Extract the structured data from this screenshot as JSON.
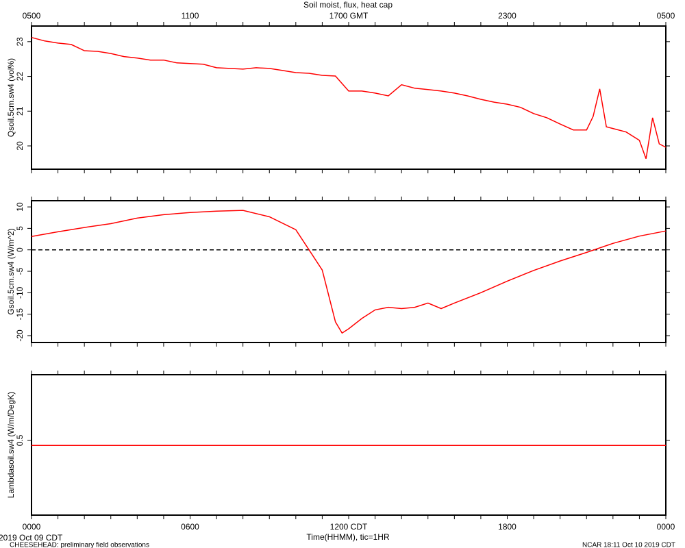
{
  "chart_data": [
    {
      "type": "line",
      "title": "Soil moist, flux, heat cap",
      "ylabel": "Qsoil.5cm.sw4 (vol%)",
      "color": "#ff0000",
      "x": [
        0,
        0.5,
        1,
        1.5,
        2,
        2.5,
        3,
        3.5,
        4,
        4.5,
        5,
        5.5,
        6,
        6.5,
        7,
        7.5,
        8,
        8.5,
        9,
        9.5,
        10,
        10.5,
        11,
        11.5,
        12,
        12.5,
        13,
        13.5,
        14,
        14.5,
        15,
        15.5,
        16,
        16.5,
        17,
        17.5,
        18,
        18.5,
        19,
        19.5,
        20,
        20.5,
        21,
        21.25,
        21.5,
        21.75,
        22,
        22.5,
        23,
        23.25,
        23.5,
        23.75,
        24
      ],
      "values": [
        23.12,
        23.02,
        22.96,
        22.92,
        22.74,
        22.72,
        22.66,
        22.57,
        22.53,
        22.47,
        22.47,
        22.39,
        22.37,
        22.35,
        22.25,
        22.23,
        22.21,
        22.25,
        22.23,
        22.17,
        22.11,
        22.09,
        22.03,
        22.01,
        21.58,
        21.58,
        21.52,
        21.44,
        21.76,
        21.66,
        21.62,
        21.58,
        21.52,
        21.44,
        21.34,
        21.26,
        21.2,
        21.11,
        20.93,
        20.81,
        20.63,
        20.46,
        20.46,
        20.85,
        21.64,
        20.55,
        20.5,
        20.4,
        20.16,
        19.63,
        20.81,
        20.06,
        19.96
      ],
      "xlim": [
        0,
        24
      ],
      "ylim": [
        19.33,
        23.45
      ],
      "yticks": [
        20,
        21,
        22,
        23
      ],
      "x2ticks": [
        {
          "value": 0,
          "label": "0500"
        },
        {
          "value": 6,
          "label": "1100"
        },
        {
          "value": 12,
          "label": "1700 GMT"
        },
        {
          "value": 18,
          "label": "2300"
        },
        {
          "value": 24,
          "label": "0500"
        }
      ],
      "xminor_ticks": [
        0,
        1,
        2,
        3,
        4,
        5,
        6,
        7,
        8,
        9,
        10,
        11,
        12,
        13,
        14,
        15,
        16,
        17,
        18,
        19,
        20,
        21,
        22,
        23,
        24
      ]
    },
    {
      "type": "line",
      "ylabel": "Gsoil.5cm.sw4 (W/m^2)",
      "color": "#ff0000",
      "x": [
        0,
        1,
        2,
        3,
        4,
        5,
        6,
        7,
        8,
        9,
        10,
        10.5,
        11,
        11.5,
        11.75,
        12,
        12.5,
        13,
        13.5,
        14,
        14.5,
        15,
        15.5,
        16,
        17,
        18,
        19,
        20,
        21,
        22,
        23,
        24
      ],
      "values": [
        3.1,
        4.2,
        5.2,
        6.1,
        7.4,
        8.2,
        8.7,
        9.0,
        9.2,
        7.7,
        4.7,
        0,
        -4.7,
        -16.8,
        -19.4,
        -18.4,
        -16,
        -14,
        -13.4,
        -13.7,
        -13.4,
        -12.4,
        -13.7,
        -12.4,
        -10,
        -7.3,
        -4.8,
        -2.6,
        -0.6,
        1.5,
        3.2,
        4.4
      ],
      "xlim": [
        0,
        24
      ],
      "ylim": [
        -21.6,
        11.45
      ],
      "yticks": [
        -20,
        -15,
        -10,
        -5,
        0,
        5,
        10
      ],
      "reference_line": 0,
      "xminor_ticks": [
        0,
        1,
        2,
        3,
        4,
        5,
        6,
        7,
        8,
        9,
        10,
        11,
        12,
        13,
        14,
        15,
        16,
        17,
        18,
        19,
        20,
        21,
        22,
        23,
        24
      ]
    },
    {
      "type": "line",
      "ylabel": "Lambdasoil.sw4 (W/m/DegK)",
      "color": "#ff0000",
      "x": [
        0,
        24
      ],
      "values": [
        0.49,
        0.49
      ],
      "xlim": [
        0,
        24
      ],
      "ylim": [
        0.35,
        0.632
      ],
      "yticks": [
        0.5
      ],
      "xticks": [
        {
          "value": 0,
          "label": "0000"
        },
        {
          "value": 6,
          "label": "0600"
        },
        {
          "value": 12,
          "label": "1200 CDT"
        },
        {
          "value": 18,
          "label": "1800"
        },
        {
          "value": 24,
          "label": "0000"
        }
      ],
      "xlabel": "Time(HHMM), tic=1HR",
      "xminor_ticks": [
        0,
        1,
        2,
        3,
        4,
        5,
        6,
        7,
        8,
        9,
        10,
        11,
        12,
        13,
        14,
        15,
        16,
        17,
        18,
        19,
        20,
        21,
        22,
        23,
        24
      ]
    }
  ],
  "footer": {
    "date": "2019 Oct 09 CDT",
    "project": "CHEESEHEAD: preliminary field observations",
    "stamp": "NCAR 18:11 Oct 10 2019 CDT"
  }
}
